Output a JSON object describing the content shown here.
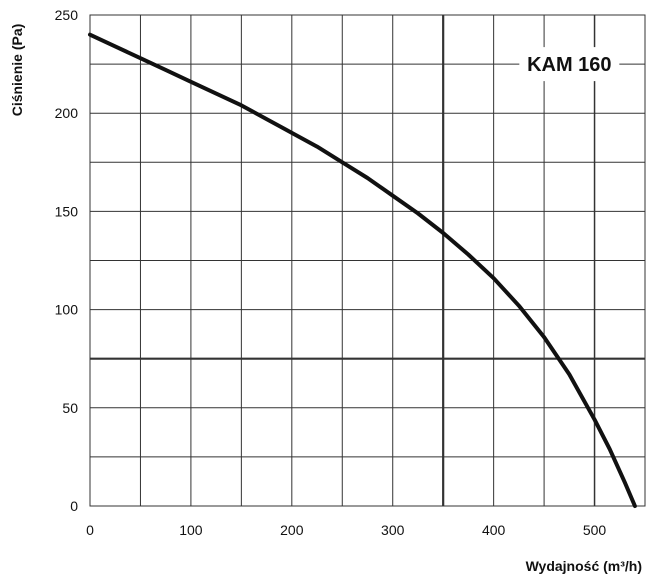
{
  "chart_data": {
    "type": "line",
    "title": "",
    "xlabel": "Wydajność (m³/h)",
    "ylabel": "Ciśnienie (Pa)",
    "xlim": [
      0,
      550
    ],
    "ylim": [
      0,
      250
    ],
    "grid": true,
    "x_ticks": [
      "0",
      "100",
      "200",
      "300",
      "400",
      "500"
    ],
    "y_ticks": [
      "0",
      "50",
      "100",
      "150",
      "200",
      "250"
    ],
    "series": [
      {
        "name": "KAM 160",
        "x": [
          0,
          25,
          50,
          75,
          100,
          125,
          150,
          175,
          200,
          225,
          250,
          275,
          300,
          325,
          350,
          375,
          400,
          425,
          450,
          475,
          500,
          515,
          530,
          540
        ],
        "y": [
          240,
          234,
          228,
          222,
          216,
          210,
          204,
          197,
          190,
          183,
          175,
          167,
          158,
          149,
          139,
          128,
          116,
          102,
          86,
          67,
          44,
          29,
          12,
          0
        ]
      }
    ],
    "annotations": [
      {
        "text": "KAM 160"
      }
    ],
    "colors": {
      "curve": "#111111",
      "grid": "#333333",
      "background": "#ffffff"
    }
  }
}
